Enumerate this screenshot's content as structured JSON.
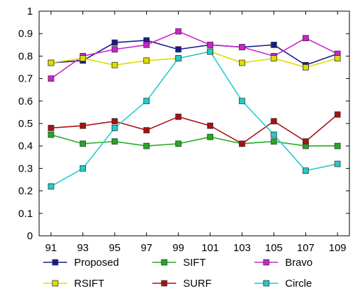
{
  "chart_data": {
    "type": "line",
    "title": "",
    "xlabel": "",
    "ylabel": "",
    "categories": [
      "91",
      "93",
      "95",
      "97",
      "99",
      "101",
      "103",
      "105",
      "107",
      "109"
    ],
    "ylim": [
      0,
      1
    ],
    "yticks": [
      "0",
      "0.1",
      "0.2",
      "0.3",
      "0.4",
      "0.5",
      "0.6",
      "0.7",
      "0.8",
      "0.9",
      "1"
    ],
    "grid": false,
    "legend_position": "bottom",
    "series": [
      {
        "name": "Proposed",
        "color": "#1a1a8c",
        "values": [
          0.77,
          0.78,
          0.86,
          0.87,
          0.83,
          0.85,
          0.84,
          0.85,
          0.76,
          0.81
        ]
      },
      {
        "name": "SIFT",
        "color": "#22aa22",
        "values": [
          0.45,
          0.41,
          0.42,
          0.4,
          0.41,
          0.44,
          0.41,
          0.42,
          0.4,
          0.4
        ]
      },
      {
        "name": "Bravo",
        "color": "#cc22cc",
        "values": [
          0.7,
          0.8,
          0.83,
          0.85,
          0.91,
          0.85,
          0.84,
          0.8,
          0.88,
          0.81
        ]
      },
      {
        "name": "RSIFT",
        "color": "#dddd00",
        "values": [
          0.77,
          0.79,
          0.76,
          0.78,
          0.79,
          0.82,
          0.77,
          0.79,
          0.75,
          0.79
        ]
      },
      {
        "name": "SURF",
        "color": "#aa1111",
        "values": [
          0.48,
          0.49,
          0.51,
          0.47,
          0.53,
          0.49,
          0.41,
          0.51,
          0.42,
          0.54
        ]
      },
      {
        "name": "Circle",
        "color": "#22cccc",
        "values": [
          0.22,
          0.3,
          0.48,
          0.6,
          0.79,
          0.82,
          0.6,
          0.45,
          0.29,
          0.32
        ]
      }
    ]
  }
}
